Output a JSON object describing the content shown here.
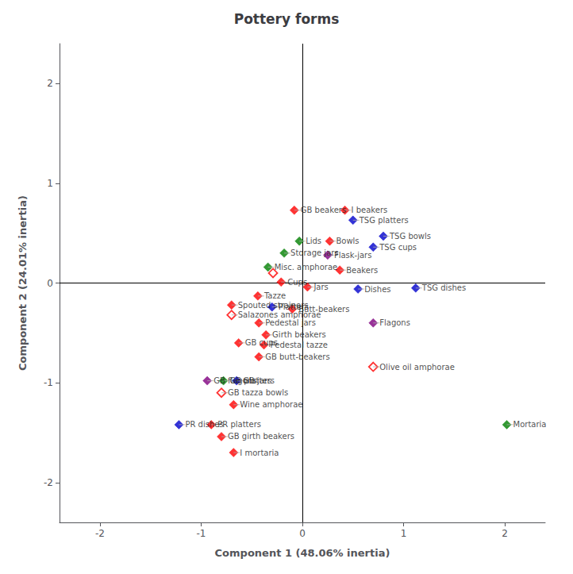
{
  "chart_data": {
    "type": "scatter",
    "title": "Pottery forms",
    "xlabel": "Component 1 (48.06% inertia)",
    "ylabel": "Component 2 (24.01% inertia)",
    "xlim": [
      -2.4,
      2.4
    ],
    "ylim": [
      -2.4,
      2.4
    ],
    "xticks": [
      -2,
      -1,
      0,
      1,
      2
    ],
    "yticks": [
      -2,
      -1,
      0,
      1,
      2
    ],
    "grid": false,
    "series": [
      {
        "marker": "diamond",
        "x": [
          0.42,
          0.5,
          -0.08,
          0.8,
          0.7,
          0.27,
          0.25,
          0.37,
          -0.03,
          -0.18,
          -0.34,
          -0.21,
          0.05,
          0.55,
          1.12,
          -0.44,
          -0.3,
          -0.1,
          -0.7,
          -0.43,
          -0.36,
          -0.63,
          -0.38,
          -0.43,
          0.7,
          -0.94,
          -0.78,
          -0.65,
          -0.68,
          -1.22,
          -0.9,
          -0.8,
          -0.68,
          2.02
        ],
        "values": [
          0.73,
          0.63,
          0.73,
          0.47,
          0.36,
          0.42,
          0.28,
          0.13,
          0.42,
          0.3,
          0.16,
          0.01,
          -0.04,
          -0.06,
          -0.05,
          -0.13,
          -0.24,
          -0.26,
          -0.22,
          -0.4,
          -0.52,
          -0.6,
          -0.62,
          -0.74,
          -0.4,
          -0.98,
          -0.98,
          -0.98,
          -1.22,
          -1.42,
          -1.42,
          -1.54,
          -1.7,
          -1.42
        ],
        "colors": [
          "#ff0000",
          "#0000cc",
          "#ff0000",
          "#0000cc",
          "#0000cc",
          "#ff0000",
          "#800080",
          "#ff0000",
          "#008000",
          "#008000",
          "#008000",
          "#ff0000",
          "#ff0000",
          "#0000cc",
          "#0000cc",
          "#ff0000",
          "#0000cc",
          "#ff0000",
          "#ff0000",
          "#ff0000",
          "#ff0000",
          "#ff0000",
          "#ff0000",
          "#ff0000",
          "#800080",
          "#800080",
          "#008000",
          "#0000cc",
          "#ff0000",
          "#0000cc",
          "#ff0000",
          "#ff0000",
          "#ff0000",
          "#008000"
        ]
      },
      {
        "marker": "open_diamond",
        "color": "#ff0000",
        "x": [
          -0.29,
          -0.7,
          0.7,
          -0.8
        ],
        "values": [
          0.1,
          -0.32,
          -0.84,
          -1.1
        ]
      }
    ],
    "annotations": [
      {
        "text": "I beakers",
        "x": 0.42,
        "y": 0.73
      },
      {
        "text": "TSG platters",
        "x": 0.5,
        "y": 0.63
      },
      {
        "text": "GB beakers",
        "x": -0.08,
        "y": 0.73
      },
      {
        "text": "TSG bowls",
        "x": 0.8,
        "y": 0.47
      },
      {
        "text": "TSG cups",
        "x": 0.7,
        "y": 0.36
      },
      {
        "text": "Bowls",
        "x": 0.27,
        "y": 0.42
      },
      {
        "text": "Flask-jars",
        "x": 0.25,
        "y": 0.28
      },
      {
        "text": "Beakers",
        "x": 0.37,
        "y": 0.13
      },
      {
        "text": "Lids",
        "x": -0.03,
        "y": 0.42
      },
      {
        "text": "Storage jars",
        "x": -0.18,
        "y": 0.3
      },
      {
        "text": "Misc. amphorae",
        "x": -0.34,
        "y": 0.16
      },
      {
        "text": "Cups",
        "x": -0.21,
        "y": 0.01
      },
      {
        "text": "Jars",
        "x": 0.05,
        "y": -0.04
      },
      {
        "text": "Dishes",
        "x": 0.55,
        "y": -0.06
      },
      {
        "text": "TSG dishes",
        "x": 1.12,
        "y": -0.05
      },
      {
        "text": "Tazze",
        "x": -0.44,
        "y": -0.13
      },
      {
        "text": "Platters",
        "x": -0.3,
        "y": -0.24
      },
      {
        "text": "Butt-beakers",
        "x": -0.1,
        "y": -0.26
      },
      {
        "text": "Spouted strainers",
        "x": -0.7,
        "y": -0.22
      },
      {
        "text": "Salazones amphorae",
        "x": -0.7,
        "y": -0.32
      },
      {
        "text": "Pedestal jars",
        "x": -0.43,
        "y": -0.4
      },
      {
        "text": "Girth beakers",
        "x": -0.36,
        "y": -0.52
      },
      {
        "text": "GB cups",
        "x": -0.63,
        "y": -0.6
      },
      {
        "text": "Pedestal tazze",
        "x": -0.38,
        "y": -0.62
      },
      {
        "text": "GB butt-beakers",
        "x": -0.43,
        "y": -0.74
      },
      {
        "text": "Flagons",
        "x": 0.7,
        "y": -0.4
      },
      {
        "text": "Olive oil amphorae",
        "x": 0.7,
        "y": -0.84
      },
      {
        "text": "GB flagons",
        "x": -0.94,
        "y": -0.98
      },
      {
        "text": "GB platters",
        "x": -0.78,
        "y": -0.98
      },
      {
        "text": "GB jars",
        "x": -0.65,
        "y": -0.98
      },
      {
        "text": "GB tazza bowls",
        "x": -0.8,
        "y": -1.1
      },
      {
        "text": "Wine amphorae",
        "x": -0.68,
        "y": -1.22
      },
      {
        "text": "PR dishes",
        "x": -1.22,
        "y": -1.42
      },
      {
        "text": "PR platters",
        "x": -0.9,
        "y": -1.42
      },
      {
        "text": "GB girth beakers",
        "x": -0.8,
        "y": -1.54
      },
      {
        "text": "I mortaria",
        "x": -0.68,
        "y": -1.7
      },
      {
        "text": "Mortaria",
        "x": 2.02,
        "y": -1.42
      }
    ],
    "reference_lines": [
      {
        "axis": "x",
        "value": 0
      },
      {
        "axis": "y",
        "value": 0
      }
    ]
  }
}
